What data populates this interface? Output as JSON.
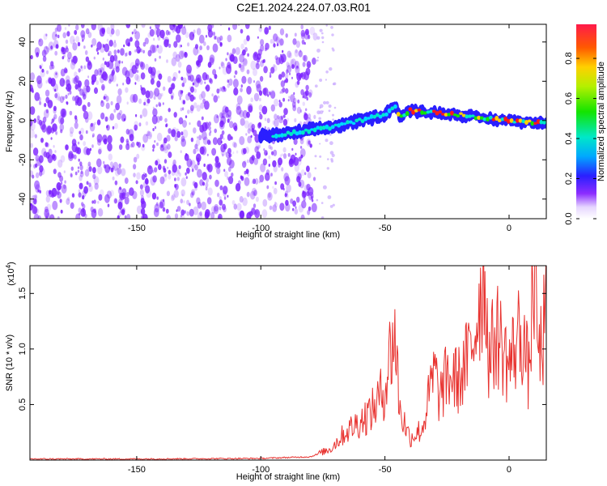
{
  "title": "C2E1.2024.224.07.03.R01",
  "colors": {
    "snr_line": "#e8322f",
    "spectral_track": "#2a66ff",
    "noise": "#7a1fff"
  },
  "charts": {
    "spectrogram": {
      "type": "heatmap",
      "xlabel": "Height of straight line (km)",
      "ylabel": "Frequency (Hz)",
      "xlim": [
        -193,
        15
      ],
      "ylim": [
        -50,
        49
      ],
      "xticks": [
        "-150",
        "-100",
        "-50",
        "0"
      ],
      "xtick_values": [
        -150,
        -100,
        -50,
        0
      ],
      "yticks": [
        "-40",
        "-20",
        "0",
        "20",
        "40"
      ],
      "ytick_values": [
        -40,
        -20,
        0,
        20,
        40
      ],
      "colorbar": {
        "label": "Normalized spectral amplitude",
        "ticks": [
          "0.0",
          "0.2",
          "0.4",
          "0.6",
          "0.8"
        ],
        "tick_values": [
          0.0,
          0.2,
          0.4,
          0.6,
          0.8
        ],
        "range": [
          0.0,
          0.97
        ]
      },
      "noise_extent_km": [
        -193,
        -78
      ],
      "track": {
        "x": [
          -100,
          -90,
          -80,
          -70,
          -60,
          -50,
          -46,
          -44,
          -40,
          -30,
          -20,
          -10,
          0,
          10,
          15
        ],
        "y": [
          -8,
          -7,
          -5,
          -3,
          0,
          3,
          8,
          2,
          5,
          4,
          3,
          1,
          0,
          -1,
          -1
        ]
      }
    },
    "snr": {
      "type": "line",
      "xlabel": "Height of straight line (km)",
      "ylabel": "SNR (10 * v/v)",
      "multiplier": "(x10",
      "multiplier_exp": "4",
      "xlim": [
        -193,
        15
      ],
      "ylim": [
        0.0,
        1.75
      ],
      "xticks": [
        "-150",
        "-100",
        "-50",
        "0"
      ],
      "xtick_values": [
        -150,
        -100,
        -50,
        0
      ],
      "yticks": [
        "0.5",
        "1.0",
        "1.5"
      ],
      "ytick_values": [
        0.5,
        1.0,
        1.5
      ],
      "series": [
        {
          "x": [
            -193,
            -150,
            -100,
            -80,
            -72,
            -66,
            -60,
            -55,
            -50,
            -48,
            -46,
            -44,
            -40,
            -35,
            -30,
            -28,
            -25,
            -20,
            -15,
            -10,
            -8,
            -5,
            0,
            5,
            8,
            10,
            12,
            15
          ],
          "y": [
            0.01,
            0.01,
            0.015,
            0.03,
            0.1,
            0.25,
            0.35,
            0.45,
            0.65,
            0.95,
            1.15,
            0.45,
            0.2,
            0.28,
            0.8,
            0.55,
            0.75,
            0.72,
            1.0,
            1.75,
            0.9,
            1.15,
            0.85,
            1.2,
            0.75,
            1.75,
            0.9,
            1.3
          ]
        }
      ]
    }
  }
}
